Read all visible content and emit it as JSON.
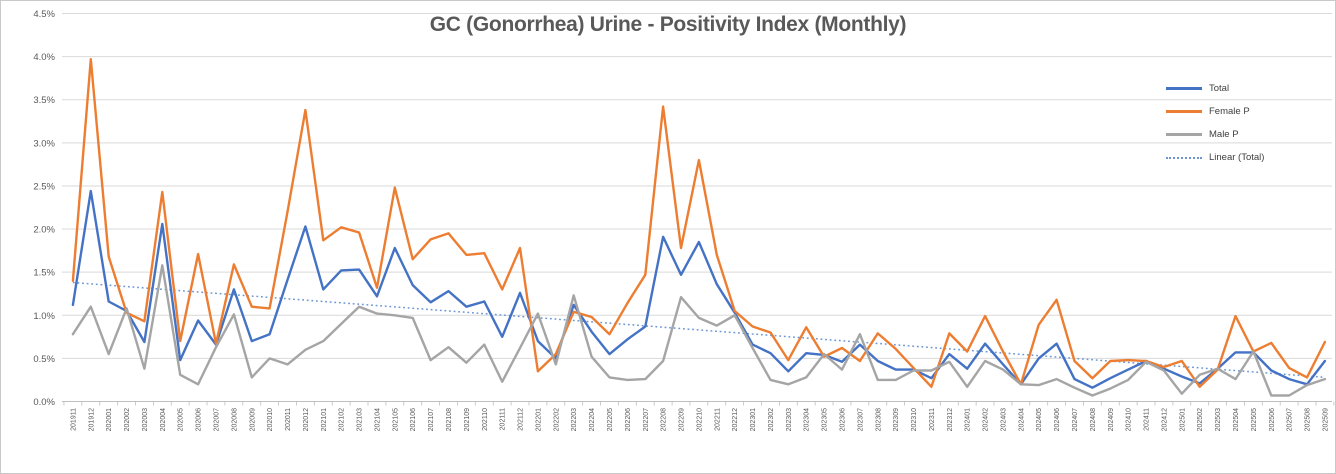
{
  "title": "GC (Gonorrhea) Urine - Positivity Index (Monthly)",
  "y_axis": {
    "labels": [
      "0.0%",
      "0.5%",
      "1.0%",
      "1.5%",
      "2.0%",
      "2.5%",
      "3.0%",
      "3.5%",
      "4.0%",
      "4.5%"
    ],
    "values": [
      0,
      0.5,
      1.0,
      1.5,
      2.0,
      2.5,
      3.0,
      3.5,
      4.0,
      4.5
    ]
  },
  "legend": {
    "items": [
      {
        "label": "Total",
        "color": "#4472C4",
        "style": "solid"
      },
      {
        "label": "Female P",
        "color": "#ED7D31",
        "style": "solid"
      },
      {
        "label": "Male P",
        "color": "#A5A5A5",
        "style": "solid"
      },
      {
        "label": "Linear (Total)",
        "color": "#6C96D2",
        "style": "dotted"
      }
    ]
  },
  "colors": {
    "gridline": "#D9D9D9",
    "axis_line": "#BFBFBF",
    "tick": "#BFBFBF",
    "axis_text": "#595959",
    "title_text": "#595959"
  },
  "chart_data": {
    "type": "line",
    "title": "GC (Gonorrhea) Urine - Positivity Index (Monthly)",
    "ylim": [
      0,
      4.5
    ],
    "grid": true,
    "legend_position": "top-right",
    "x": [
      "201911",
      "201912",
      "202001",
      "202002",
      "202003",
      "202004",
      "202005",
      "202006",
      "202007",
      "202008",
      "202009",
      "202010",
      "202011",
      "202012",
      "202101",
      "202102",
      "202103",
      "202104",
      "202105",
      "202106",
      "202107",
      "202108",
      "202109",
      "202110",
      "202111",
      "202112",
      "202201",
      "202202",
      "202203",
      "202204",
      "202205",
      "202206",
      "202207",
      "202208",
      "202209",
      "202210",
      "202211",
      "202212",
      "202301",
      "202302",
      "202303",
      "202304",
      "202305",
      "202306",
      "202307",
      "202308",
      "202309",
      "202310",
      "202311",
      "202312",
      "202401",
      "202402",
      "202403",
      "202404",
      "202405",
      "202406",
      "202407",
      "202408",
      "202409",
      "202410",
      "202411",
      "202412",
      "202501",
      "202502",
      "202503",
      "202504",
      "202505",
      "202506",
      "202507",
      "202508",
      "202509"
    ],
    "series": [
      {
        "name": "Total",
        "color": "#4472C4",
        "width": 2.4,
        "values": [
          1.12,
          2.44,
          1.16,
          1.05,
          0.69,
          2.06,
          0.48,
          0.94,
          0.66,
          1.3,
          0.7,
          0.78,
          1.41,
          2.03,
          1.3,
          1.52,
          1.53,
          1.22,
          1.78,
          1.35,
          1.15,
          1.28,
          1.1,
          1.16,
          0.75,
          1.26,
          0.7,
          0.5,
          1.12,
          0.81,
          0.55,
          0.72,
          0.87,
          1.91,
          1.47,
          1.85,
          1.36,
          1.03,
          0.66,
          0.56,
          0.35,
          0.56,
          0.54,
          0.46,
          0.66,
          0.47,
          0.37,
          0.37,
          0.27,
          0.55,
          0.38,
          0.67,
          0.43,
          0.2,
          0.5,
          0.67,
          0.26,
          0.16,
          0.27,
          0.37,
          0.47,
          0.38,
          0.29,
          0.21,
          0.38,
          0.57,
          0.57,
          0.36,
          0.26,
          0.2,
          0.47
        ]
      },
      {
        "name": "Female P",
        "color": "#ED7D31",
        "width": 2.4,
        "values": [
          1.4,
          3.97,
          1.68,
          1.03,
          0.93,
          2.43,
          0.7,
          1.71,
          0.67,
          1.59,
          1.1,
          1.08,
          2.2,
          3.38,
          1.87,
          2.02,
          1.96,
          1.32,
          2.48,
          1.65,
          1.88,
          1.95,
          1.7,
          1.72,
          1.3,
          1.78,
          0.35,
          0.55,
          1.04,
          0.98,
          0.78,
          1.14,
          1.47,
          3.42,
          1.78,
          2.8,
          1.7,
          1.05,
          0.87,
          0.8,
          0.48,
          0.86,
          0.52,
          0.62,
          0.47,
          0.79,
          0.61,
          0.39,
          0.17,
          0.79,
          0.58,
          0.99,
          0.58,
          0.2,
          0.89,
          1.18,
          0.47,
          0.27,
          0.47,
          0.48,
          0.47,
          0.4,
          0.47,
          0.17,
          0.37,
          0.99,
          0.58,
          0.68,
          0.39,
          0.28,
          0.69
        ]
      },
      {
        "name": "Male P",
        "color": "#A5A5A5",
        "width": 2.4,
        "values": [
          0.78,
          1.1,
          0.55,
          1.08,
          0.38,
          1.58,
          0.31,
          0.2,
          0.63,
          1.01,
          0.28,
          0.5,
          0.43,
          0.6,
          0.7,
          0.9,
          1.1,
          1.02,
          1.0,
          0.97,
          0.48,
          0.63,
          0.45,
          0.66,
          0.23,
          0.62,
          1.02,
          0.43,
          1.23,
          0.52,
          0.28,
          0.25,
          0.26,
          0.47,
          1.21,
          0.97,
          0.88,
          1.0,
          0.62,
          0.25,
          0.2,
          0.28,
          0.55,
          0.37,
          0.78,
          0.25,
          0.25,
          0.36,
          0.36,
          0.46,
          0.17,
          0.47,
          0.37,
          0.2,
          0.19,
          0.26,
          0.16,
          0.07,
          0.15,
          0.25,
          0.46,
          0.36,
          0.09,
          0.31,
          0.38,
          0.26,
          0.58,
          0.07,
          0.07,
          0.19,
          0.26
        ]
      }
    ],
    "trendline": {
      "name": "Linear (Total)",
      "color": "#6C96D2",
      "start": 1.38,
      "end": 0.28,
      "width": 1.5
    }
  }
}
